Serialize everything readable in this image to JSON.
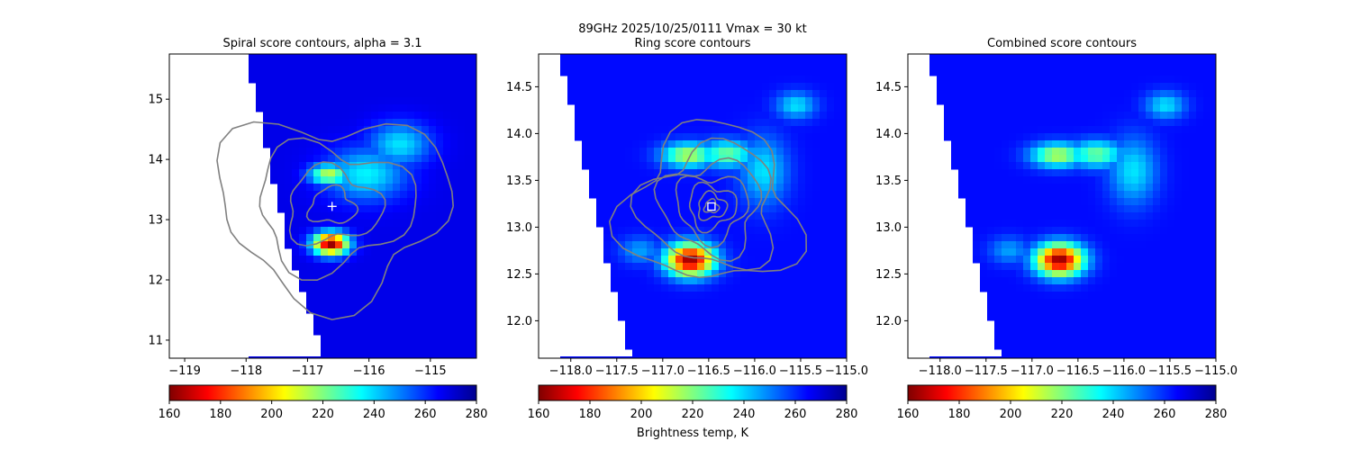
{
  "figure": {
    "suptitle_line1": "89GHz  2025/10/25/0111    Vmax = 30 kt",
    "colorbar_label": "Brightness temp, K"
  },
  "colormap": {
    "name": "jet",
    "stops": [
      "#800000",
      "#ff0000",
      "#ff8000",
      "#ffff00",
      "#80ff80",
      "#00ffff",
      "#0080ff",
      "#0000ff",
      "#00008f"
    ],
    "range": [
      160,
      280
    ],
    "ticks": [
      "160",
      "180",
      "200",
      "220",
      "240",
      "260",
      "280"
    ],
    "swath_edge_color": "#ffffff"
  },
  "chart_data": [
    {
      "type": "heatmap",
      "title": "Spiral score contours, alpha =  3.1",
      "xlim": [
        -119.25,
        -114.25
      ],
      "ylim": [
        10.7,
        15.75
      ],
      "x_ticks": [
        -119,
        -118,
        -117,
        -116,
        -115
      ],
      "x_tick_labels": [
        "−119",
        "−118",
        "−117",
        "−116",
        "−115"
      ],
      "y_ticks": [
        11,
        12,
        13,
        14,
        15
      ],
      "y_tick_labels": [
        "11",
        "12",
        "13",
        "14",
        "15"
      ],
      "swath_west_edge": [
        [
          -116.7,
          10.7
        ],
        [
          -117.3,
          12.5
        ],
        [
          -118.0,
          15.75
        ]
      ],
      "background_temp_K": 268,
      "features": [
        {
          "lon": -116.62,
          "lat": 12.6,
          "min_temp_K": 162,
          "sigma_lon": 0.2,
          "sigma_lat": 0.13
        },
        {
          "lon": -116.65,
          "lat": 13.75,
          "min_temp_K": 212,
          "sigma_lon": 0.22,
          "sigma_lat": 0.12
        },
        {
          "lon": -116.05,
          "lat": 13.75,
          "min_temp_K": 236,
          "sigma_lon": 0.45,
          "sigma_lat": 0.3
        },
        {
          "lon": -115.5,
          "lat": 14.25,
          "min_temp_K": 238,
          "sigma_lon": 0.35,
          "sigma_lat": 0.25
        }
      ],
      "contour_color": "#808080",
      "center_marker": {
        "symbol": "+",
        "lon": -116.6,
        "lat": 13.22
      }
    },
    {
      "type": "heatmap",
      "title": "Ring score contours",
      "xlim": [
        -118.35,
        -115.0
      ],
      "ylim": [
        11.6,
        14.85
      ],
      "x_ticks": [
        -118.0,
        -117.5,
        -117.0,
        -116.5,
        -116.0,
        -115.5,
        -115.0
      ],
      "x_tick_labels": [
        "−118.0",
        "−117.5",
        "−117.0",
        "−116.5",
        "−116.0",
        "−115.5",
        "−115.0"
      ],
      "y_ticks": [
        12.0,
        12.5,
        13.0,
        13.5,
        14.0,
        14.5
      ],
      "y_tick_labels": [
        "12.0",
        "12.5",
        "13.0",
        "13.5",
        "14.0",
        "14.5"
      ],
      "swath_west_edge": [
        [
          -117.35,
          11.6
        ],
        [
          -118.1,
          14.7
        ],
        [
          -118.1,
          14.85
        ]
      ],
      "background_temp_K": 264,
      "features": [
        {
          "lon": -116.7,
          "lat": 12.65,
          "min_temp_K": 162,
          "sigma_lon": 0.18,
          "sigma_lat": 0.12
        },
        {
          "lon": -116.72,
          "lat": 13.77,
          "min_temp_K": 213,
          "sigma_lon": 0.2,
          "sigma_lat": 0.09
        },
        {
          "lon": -116.3,
          "lat": 13.78,
          "min_temp_K": 222,
          "sigma_lon": 0.2,
          "sigma_lat": 0.1
        },
        {
          "lon": -115.9,
          "lat": 13.6,
          "min_temp_K": 238,
          "sigma_lon": 0.18,
          "sigma_lat": 0.25
        },
        {
          "lon": -115.55,
          "lat": 14.3,
          "min_temp_K": 238,
          "sigma_lon": 0.15,
          "sigma_lat": 0.1
        },
        {
          "lon": -117.25,
          "lat": 12.75,
          "min_temp_K": 246,
          "sigma_lon": 0.15,
          "sigma_lat": 0.1
        }
      ],
      "contour_color": "#808080",
      "center_marker": {
        "symbol": "square",
        "lon": -116.47,
        "lat": 13.22
      }
    },
    {
      "type": "heatmap",
      "title": "Combined score contours",
      "xlim": [
        -118.35,
        -115.0
      ],
      "ylim": [
        11.6,
        14.85
      ],
      "x_ticks": [
        -118.0,
        -117.5,
        -117.0,
        -116.5,
        -116.0,
        -115.5,
        -115.0
      ],
      "x_tick_labels": [
        "−118.0",
        "−117.5",
        "−117.0",
        "−116.5",
        "−116.0",
        "−115.5",
        "−115.0"
      ],
      "y_ticks": [
        12.0,
        12.5,
        13.0,
        13.5,
        14.0,
        14.5
      ],
      "y_tick_labels": [
        "12.0",
        "12.5",
        "13.0",
        "13.5",
        "14.0",
        "14.5"
      ],
      "swath_west_edge": [
        [
          -117.35,
          11.6
        ],
        [
          -118.1,
          14.7
        ],
        [
          -118.1,
          14.85
        ]
      ],
      "background_temp_K": 264,
      "features": [
        {
          "lon": -116.7,
          "lat": 12.65,
          "min_temp_K": 162,
          "sigma_lon": 0.18,
          "sigma_lat": 0.12
        },
        {
          "lon": -116.72,
          "lat": 13.77,
          "min_temp_K": 213,
          "sigma_lon": 0.2,
          "sigma_lat": 0.09
        },
        {
          "lon": -116.3,
          "lat": 13.78,
          "min_temp_K": 222,
          "sigma_lon": 0.2,
          "sigma_lat": 0.1
        },
        {
          "lon": -115.9,
          "lat": 13.6,
          "min_temp_K": 238,
          "sigma_lon": 0.18,
          "sigma_lat": 0.25
        },
        {
          "lon": -115.55,
          "lat": 14.3,
          "min_temp_K": 238,
          "sigma_lon": 0.15,
          "sigma_lat": 0.1
        },
        {
          "lon": -117.25,
          "lat": 12.75,
          "min_temp_K": 246,
          "sigma_lon": 0.15,
          "sigma_lat": 0.1
        }
      ],
      "contour_color": null,
      "center_marker": null
    }
  ]
}
